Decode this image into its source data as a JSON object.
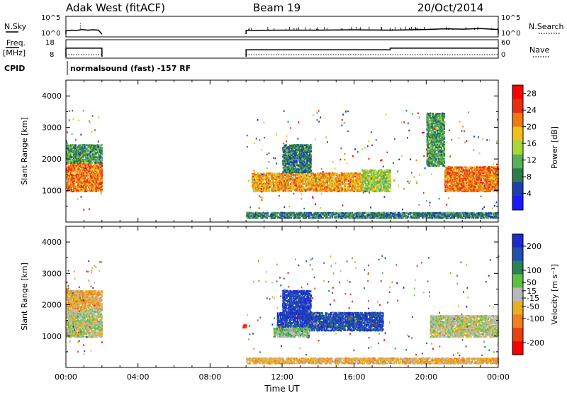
{
  "header": {
    "station": "Adak West (fitACF)",
    "beam": "Beam 19",
    "date": "20/Oct/2014"
  },
  "panel_labels": {
    "nsky": "N.Sky",
    "nsearch": "N.Search",
    "freq_line1": "Freq.",
    "freq_line2": "[MHz]",
    "nave": "Nave",
    "cpid": "CPID",
    "cpid_value": "normalsound (fast) -157 RF"
  },
  "colors": {
    "power_scale": [
      "#1a1aff",
      "#1c3fb0",
      "#2e7b4a",
      "#58b058",
      "#a8d838",
      "#f0c020",
      "#f07a10",
      "#e83010",
      "#ff0000"
    ],
    "velocity_scale": [
      "#1c2ccc",
      "#2050b0",
      "#2e8058",
      "#60c040",
      "#b8b8b8",
      "#e8b020",
      "#f08020",
      "#e84010",
      "#ff0000"
    ]
  },
  "chart_data": [
    {
      "type": "line",
      "panel": "noise",
      "x_unit": "UT hours",
      "xlim": [
        0,
        24
      ],
      "left_axis": {
        "label": "N.Sky",
        "ticks": [
          "10^5",
          "10^0"
        ]
      },
      "right_axis": {
        "label": "N.Search",
        "ticks": [
          "10^5",
          "10^0"
        ]
      },
      "series": [
        {
          "name": "N.Sky",
          "x": [
            0.0,
            0.3,
            0.6,
            0.9,
            1.2,
            1.5,
            1.8,
            2.0,
            9.9,
            10.0,
            12.0,
            14.0,
            16.0,
            18.0,
            20.0,
            21.0,
            22.0,
            23.0,
            24.0
          ],
          "y": [
            1.0,
            1.2,
            1.1,
            1.4,
            1.2,
            1.3,
            1.2,
            0.0,
            0.0,
            1.1,
            1.2,
            1.2,
            1.3,
            1.2,
            1.4,
            1.6,
            1.5,
            1.7,
            1.4
          ]
        }
      ],
      "gaps": [
        [
          2.0,
          10.0
        ]
      ]
    },
    {
      "type": "line",
      "panel": "frequency",
      "xlim": [
        0,
        24
      ],
      "left_axis": {
        "label": "Freq. [MHz]",
        "ticks": [
          8,
          18
        ],
        "range": [
          8,
          18
        ]
      },
      "right_axis": {
        "label": "Nave",
        "ticks": [
          0,
          60
        ],
        "range": [
          0,
          60
        ]
      },
      "series": [
        {
          "name": "Freq.",
          "x": [
            0.0,
            2.0,
            10.0,
            18.0,
            18.0,
            24.0
          ],
          "y": [
            13.5,
            13.5,
            12.5,
            12.5,
            13.5,
            13.5
          ]
        },
        {
          "name": "Nave",
          "x": [
            0.0,
            2.0,
            10.0,
            24.0
          ],
          "y": [
            5,
            5,
            5,
            5
          ]
        }
      ]
    },
    {
      "type": "heatmap",
      "panel": "power",
      "xlabel": "",
      "ylabel": "Slant Range [km]",
      "xlim": [
        0,
        24
      ],
      "ylim": [
        0,
        4500
      ],
      "y_ticks": [
        1000,
        2000,
        3000,
        4000
      ],
      "colorbar": {
        "label": "Power [dB]",
        "ticks": [
          4,
          8,
          12,
          16,
          20,
          24,
          28
        ],
        "range": [
          0,
          30
        ]
      },
      "regions": [
        {
          "t0": 0.0,
          "t1": 2.0,
          "r0": 1000,
          "r1": 1900,
          "value": 22
        },
        {
          "t0": 0.0,
          "t1": 2.0,
          "r0": 1900,
          "r1": 2500,
          "value": 10
        },
        {
          "t0": 10.3,
          "t1": 16.4,
          "r0": 1000,
          "r1": 1600,
          "value": 20
        },
        {
          "t0": 12.0,
          "t1": 13.6,
          "r0": 1600,
          "r1": 2500,
          "value": 8
        },
        {
          "t0": 16.4,
          "t1": 18.0,
          "r0": 1000,
          "r1": 1700,
          "value": 14
        },
        {
          "t0": 21.0,
          "t1": 24.0,
          "r0": 1000,
          "r1": 1800,
          "value": 22
        },
        {
          "t0": 20.0,
          "t1": 21.0,
          "r0": 1800,
          "r1": 3500,
          "value": 10
        },
        {
          "t0": 10.0,
          "t1": 24.0,
          "r0": 150,
          "r1": 350,
          "value": 8
        }
      ]
    },
    {
      "type": "heatmap",
      "panel": "velocity",
      "xlabel": "Time UT",
      "ylabel": "Slant Range [km]",
      "xlim": [
        0,
        24
      ],
      "ylim": [
        0,
        4500
      ],
      "x_ticks": [
        "00:00",
        "04:00",
        "08:00",
        "12:00",
        "16:00",
        "20:00",
        "00:00"
      ],
      "y_ticks": [
        1000,
        2000,
        3000,
        4000
      ],
      "colorbar": {
        "label": "Velocity [m s^-1]",
        "ticks": [
          200,
          100,
          50,
          15,
          -15,
          -50,
          -100,
          -200
        ],
        "range": [
          -250,
          250
        ]
      },
      "regions": [
        {
          "t0": 0.0,
          "t1": 2.0,
          "r0": 1000,
          "r1": 1900,
          "value": 0
        },
        {
          "t0": 0.0,
          "t1": 2.0,
          "r0": 1900,
          "r1": 2500,
          "value": -60
        },
        {
          "t0": 11.7,
          "t1": 17.6,
          "r0": 1200,
          "r1": 1800,
          "value": 180
        },
        {
          "t0": 11.5,
          "t1": 13.5,
          "r0": 1000,
          "r1": 1300,
          "value": 40
        },
        {
          "t0": 12.0,
          "t1": 13.6,
          "r0": 1600,
          "r1": 2500,
          "value": 200
        },
        {
          "t0": 20.2,
          "t1": 24.0,
          "r0": 1000,
          "r1": 1700,
          "value": 0
        },
        {
          "t0": 9.8,
          "t1": 10.0,
          "r0": 1300,
          "r1": 1400,
          "value": -220
        },
        {
          "t0": 10.0,
          "t1": 24.0,
          "r0": 150,
          "r1": 350,
          "value": -60
        }
      ]
    }
  ],
  "axis_labels": {
    "power_ylabel": "Slant Range [km]",
    "velocity_ylabel": "Slant Range [km]",
    "xlabel": "Time UT",
    "power_cb": "Power [dB]",
    "velocity_cb": "Velocity [m s⁻¹]"
  }
}
